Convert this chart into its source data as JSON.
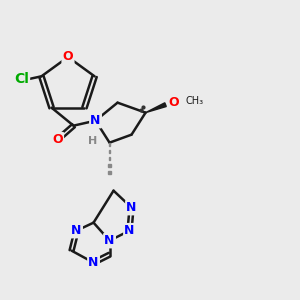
{
  "background": "#ebebeb",
  "bond_color": "#1a1a1a",
  "bond_lw": 1.8,
  "atom_colors": {
    "N": "#0000ff",
    "O": "#ff0000",
    "Cl": "#00aa00",
    "H": "#888888",
    "C": "#1a1a1a"
  },
  "font_size": 9,
  "stereo_dot_size": 2.5
}
